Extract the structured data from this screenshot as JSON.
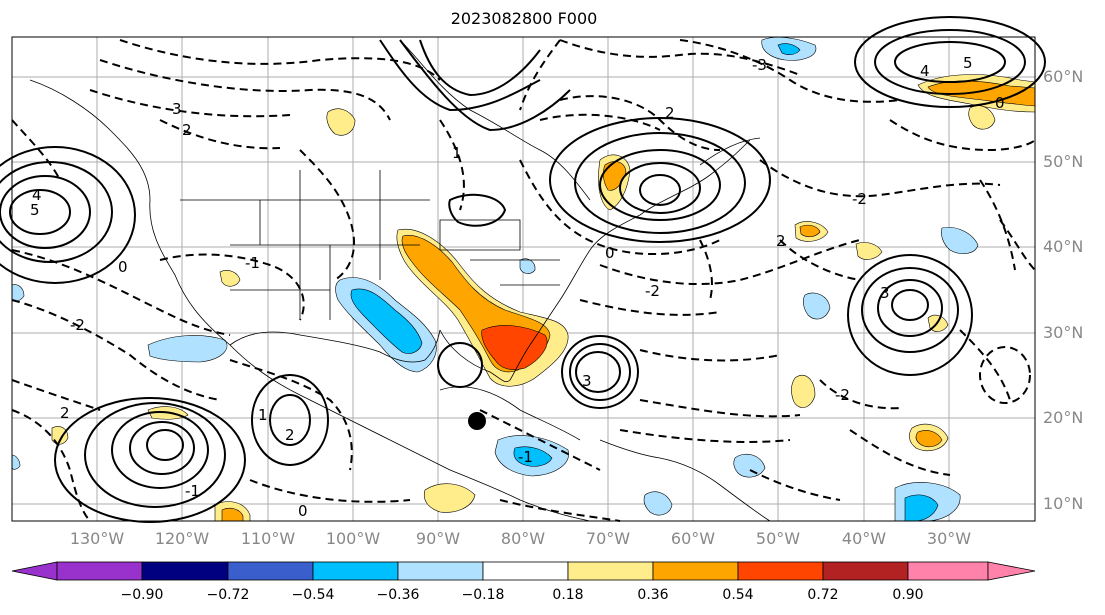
{
  "title": "2023082800 F000",
  "longitude_labels": [
    "130°W",
    "120°W",
    "110°W",
    "100°W",
    "90°W",
    "80°W",
    "70°W",
    "60°W",
    "50°W",
    "40°W",
    "30°W"
  ],
  "latitude_labels": [
    "60°N",
    "50°N",
    "40°N",
    "30°N",
    "20°N",
    "10°N"
  ],
  "colorbar": {
    "ticks": [
      "−0.90",
      "−0.72",
      "−0.54",
      "−0.36",
      "−0.18",
      "0.18",
      "0.36",
      "0.54",
      "0.72",
      "0.90"
    ],
    "colors": [
      "#9932cc",
      "#000080",
      "#3a5fcd",
      "#00bfff",
      "#b0e2ff",
      "#ffffff",
      "#ffec8b",
      "#ffa500",
      "#ff4500",
      "#b22222",
      "#ff82ab"
    ]
  },
  "contour_labels": [
    "3",
    "2",
    "4",
    "5",
    "0",
    "-1",
    "-2",
    "-3",
    "1",
    "2",
    "-2",
    "0",
    "2",
    "3",
    "5",
    "4",
    "0",
    "-2",
    "1",
    "-1",
    "2",
    "3",
    "-2",
    "-1",
    "0",
    "2"
  ],
  "marker": "storm-center-dot"
}
